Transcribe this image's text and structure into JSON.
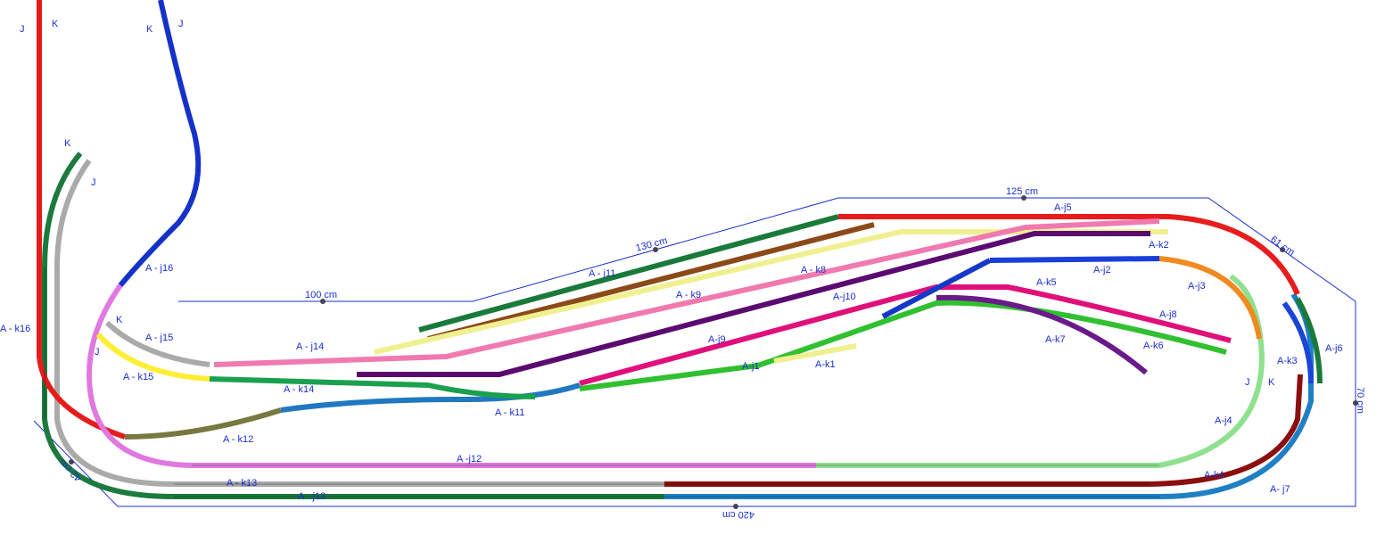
{
  "track_labels": [
    "A - j16",
    "A - k16",
    "A - j15",
    "A - k15",
    "A - j14",
    "A - k14",
    "A - k12",
    "A - k13",
    "A - j13",
    "A -j12",
    "A - k11",
    "A - j11",
    "A - k9",
    "A - k8",
    "A-j10",
    "A-j9",
    "A-j1",
    "A-k1",
    "A-k5",
    "A-k7",
    "A-j8",
    "A-k6",
    "A-j5",
    "A-k2",
    "A-j2",
    "A-j3",
    "A-k3",
    "A-j6",
    "A-j4",
    "A-k4",
    "A- j7"
  ],
  "dimensions": [
    "125 cm",
    "130 cm",
    "100 cm",
    "61 cm",
    "70 cm",
    "42 cm",
    "420 cm"
  ],
  "markers": [
    "J",
    "K",
    "K",
    "J",
    "K",
    "J",
    "K",
    "J",
    "J",
    "K"
  ]
}
